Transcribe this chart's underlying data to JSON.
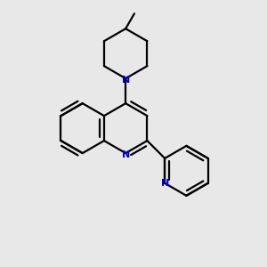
{
  "background_color": "#e8e8e8",
  "bond_color": "#000000",
  "nitrogen_color": "#0000cd",
  "line_width": 1.6,
  "figsize": [
    3.0,
    3.0
  ],
  "dpi": 100,
  "xlim": [
    0.0,
    1.0
  ],
  "ylim": [
    0.0,
    1.0
  ]
}
